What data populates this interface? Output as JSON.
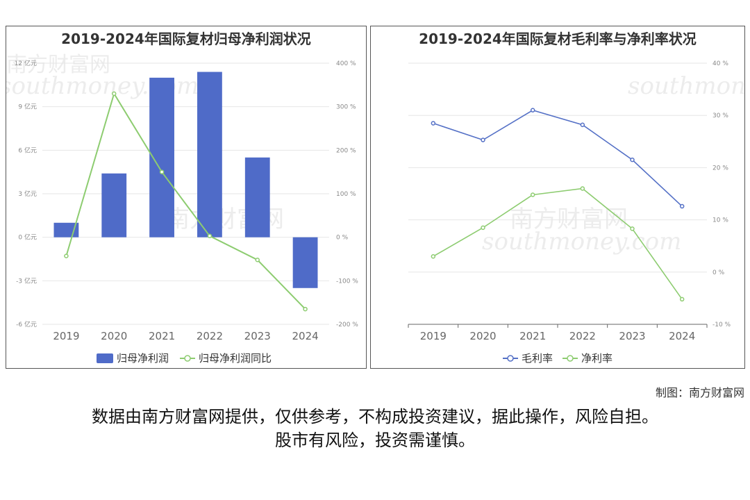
{
  "watermark": {
    "cn": "南方财富网",
    "en": "southmoney.com"
  },
  "chart_data": [
    {
      "type": "bar",
      "title": "2019-2024年国际复材归母净利润状况",
      "categories": [
        "2019",
        "2020",
        "2021",
        "2022",
        "2023",
        "2024"
      ],
      "series": [
        {
          "name": "归母净利润",
          "type": "bar",
          "axis": "left",
          "color": "#4f6bc8",
          "values": [
            1.0,
            4.4,
            11.0,
            11.4,
            5.5,
            -3.5
          ]
        },
        {
          "name": "归母净利润同比",
          "type": "line",
          "axis": "right",
          "color": "#8dcc70",
          "values": [
            -43,
            330,
            150,
            3,
            -52,
            -165
          ]
        }
      ],
      "left_axis": {
        "ylim": [
          -6,
          12
        ],
        "ticks": [
          -6,
          -3,
          0,
          3,
          6,
          9,
          12
        ],
        "tick_labels": [
          "-6 亿元",
          "-3 亿元",
          "0 亿元",
          "3 亿元",
          "6 亿元",
          "9 亿元",
          "12 亿元"
        ]
      },
      "right_axis": {
        "ylim": [
          -200,
          400
        ],
        "ticks": [
          -200,
          -100,
          0,
          100,
          200,
          300,
          400
        ],
        "tick_labels": [
          "-200 %",
          "-100 %",
          "0 %",
          "100 %",
          "200 %",
          "300 %",
          "400 %"
        ]
      },
      "legend": "bottom",
      "grid": true
    },
    {
      "type": "line",
      "title": "2019-2024年国际复材毛利率与净利率状况",
      "categories": [
        "2019",
        "2020",
        "2021",
        "2022",
        "2023",
        "2024"
      ],
      "series": [
        {
          "name": "毛利率",
          "color": "#5470c6",
          "values": [
            28.5,
            25.3,
            31.0,
            28.2,
            21.5,
            12.6
          ]
        },
        {
          "name": "净利率",
          "color": "#8dcc70",
          "values": [
            3.0,
            8.5,
            14.8,
            16.0,
            8.3,
            -5.2
          ]
        }
      ],
      "y_axis": {
        "ylim": [
          -10,
          40
        ],
        "ticks": [
          -10,
          0,
          10,
          20,
          30,
          40
        ],
        "tick_labels": [
          "-10 %",
          "0 %",
          "10 %",
          "20 %",
          "30 %",
          "40 %"
        ]
      },
      "legend": "bottom",
      "grid": true
    }
  ],
  "credit": "制图：南方财富网",
  "disclaimer": {
    "line1": "数据由南方财富网提供，仅供参考，不构成投资建议，据此操作，风险自担。",
    "line2": "股市有风险，投资需谨慎。"
  }
}
